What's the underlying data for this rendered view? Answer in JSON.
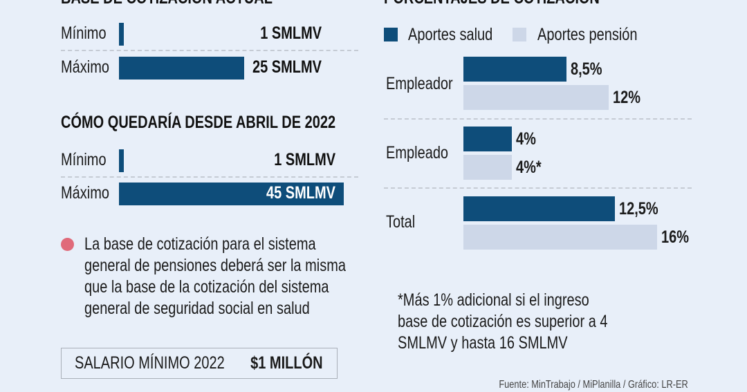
{
  "chart_data": [
    {
      "type": "bar",
      "title": "BASE DE COTIZACIÓN ACTUAL",
      "unit": "SMLMV",
      "categories": [
        "Mínimo",
        "Máximo"
      ],
      "values": [
        1,
        25
      ],
      "labels": [
        "1 SMLMV",
        "25 SMLMV"
      ]
    },
    {
      "type": "bar",
      "title": "CÓMO QUEDARÍA DESDE ABRIL DE 2022",
      "unit": "SMLMV",
      "categories": [
        "Mínimo",
        "Máximo"
      ],
      "values": [
        1,
        45
      ],
      "labels": [
        "1 SMLMV",
        "45 SMLMV"
      ]
    },
    {
      "type": "bar",
      "title": "PORCENTAJES DE COTIZACIÓN",
      "categories": [
        "Empleador",
        "Empleado",
        "Total"
      ],
      "series": [
        {
          "name": "Aportes salud",
          "color": "#0e4d7a",
          "values": [
            8.5,
            4,
            12.5
          ],
          "labels": [
            "8,5%",
            "4%",
            "12,5%"
          ]
        },
        {
          "name": "Aportes pensión",
          "color": "#cdd7e8",
          "values": [
            12,
            4,
            16
          ],
          "labels": [
            "12%",
            "4%*",
            "16%"
          ]
        }
      ]
    }
  ],
  "bullet_note": [
    "La base de cotización para el sistema",
    "general de pensiones deberá ser la misma",
    "que la base de la cotización del sistema",
    "general de seguridad social en salud"
  ],
  "salary_box": {
    "label": "SALARIO MÍNIMO 2022",
    "value": "$1 MILLÓN"
  },
  "footnote": [
    "*Más 1% adicional si el ingreso",
    "base de cotización es superior a 4",
    "SMLMV y hasta 16 SMLMV"
  ],
  "source": "Fuente: MinTrabajo / MiPlanilla / Gráfico: LR-ER",
  "colors": {
    "bullet": "#e06a7a"
  }
}
